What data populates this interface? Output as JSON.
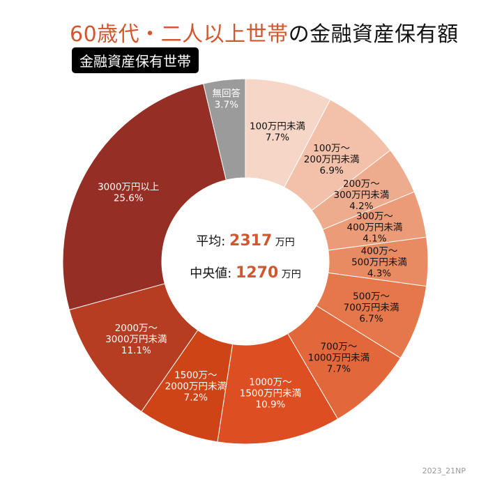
{
  "title": {
    "highlight": "60歳代・二人以上世帯",
    "rest": "の金融資産保有額"
  },
  "badge": "金融資産保有世帯",
  "center": {
    "mean_label": "平均",
    "mean_value": "2317",
    "mean_unit": "万円",
    "median_label": "中央値",
    "median_value": "1270",
    "median_unit": "万円",
    "separator": ":"
  },
  "credit": "2023_21NP",
  "chart_data": {
    "type": "pie",
    "donut": true,
    "start": "top, clockwise",
    "categories": [
      "100万円未満",
      "100万～200万円未満",
      "200万～300万円未満",
      "300万～400万円未満",
      "400万～500万円未満",
      "500万～700万円未満",
      "700万～1000万円未満",
      "1000万～1500万円未満",
      "1500万～2000万円未満",
      "2000万～3000万円未満",
      "3000万円以上",
      "無回答"
    ],
    "values": [
      7.7,
      6.9,
      4.2,
      4.1,
      4.3,
      6.7,
      7.7,
      10.9,
      7.2,
      11.1,
      25.6,
      3.7
    ],
    "unit": "%",
    "colors": [
      "#f6d6c6",
      "#f3c1aa",
      "#eeac8f",
      "#eb9b78",
      "#e88a62",
      "#e5784b",
      "#e2673a",
      "#dd4f22",
      "#cf4417",
      "#b63c22",
      "#952f25",
      "#9b9b9b"
    ],
    "label_lines": [
      [
        "100万円未満",
        "7.7%"
      ],
      [
        "100万～",
        "200万円未満",
        "6.9%"
      ],
      [
        "200万～",
        "300万円未満",
        "4.2%"
      ],
      [
        "300万～",
        "400万円未満",
        "4.1%"
      ],
      [
        "400万～",
        "500万円未満",
        "4.3%"
      ],
      [
        "500万～",
        "700万円未満",
        "6.7%"
      ],
      [
        "700万～",
        "1000万円未満",
        "7.7%"
      ],
      [
        "1000万～",
        "1500万円未満",
        "10.9%"
      ],
      [
        "1500万～",
        "2000万円未満",
        "7.2%"
      ],
      [
        "2000万～",
        "3000万円未満",
        "11.1%"
      ],
      [
        "3000万円以上",
        "25.6%"
      ],
      [
        "無回答",
        "3.7%"
      ]
    ],
    "label_colors": [
      "#111",
      "#111",
      "#111",
      "#111",
      "#111",
      "#111",
      "#111",
      "#fff",
      "#fff",
      "#fff",
      "#fff",
      "#fff"
    ]
  }
}
